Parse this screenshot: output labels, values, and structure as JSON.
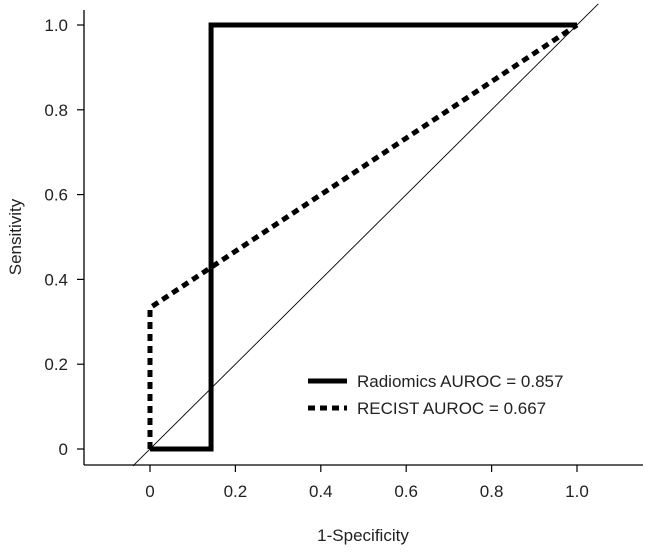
{
  "chart_data": {
    "type": "line",
    "title": "",
    "xlabel": "1-Specificity",
    "ylabel": "Sensitivity",
    "xlim": [
      -0.16,
      1.16
    ],
    "ylim": [
      0,
      1.0
    ],
    "x_ticks": [
      0,
      0.2,
      0.4,
      0.6,
      0.8,
      1.0
    ],
    "x_tick_labels": [
      "0",
      "0.2",
      "0.4",
      "0.6",
      "0.8",
      "1.0"
    ],
    "y_ticks": [
      0,
      0.2,
      0.4,
      0.6,
      0.8,
      1.0
    ],
    "y_tick_labels": [
      "0",
      "0.2",
      "0.4",
      "0.6",
      "0.8",
      "1.0"
    ],
    "grid": false,
    "legend_position": "bottom-right",
    "series": [
      {
        "name": "Radiomics AUROC = 0.857",
        "style": "solid",
        "color": "#000000",
        "x": [
          0,
          0.143,
          0.143,
          1.0
        ],
        "y": [
          0,
          0,
          1.0,
          1.0
        ]
      },
      {
        "name": "RECIST AUROC = 0.667",
        "style": "dotted",
        "color": "#000000",
        "x": [
          0,
          0,
          1.0
        ],
        "y": [
          0,
          0.333,
          1.0
        ]
      }
    ],
    "reference_line": {
      "style": "thin",
      "color": "#000000"
    }
  }
}
